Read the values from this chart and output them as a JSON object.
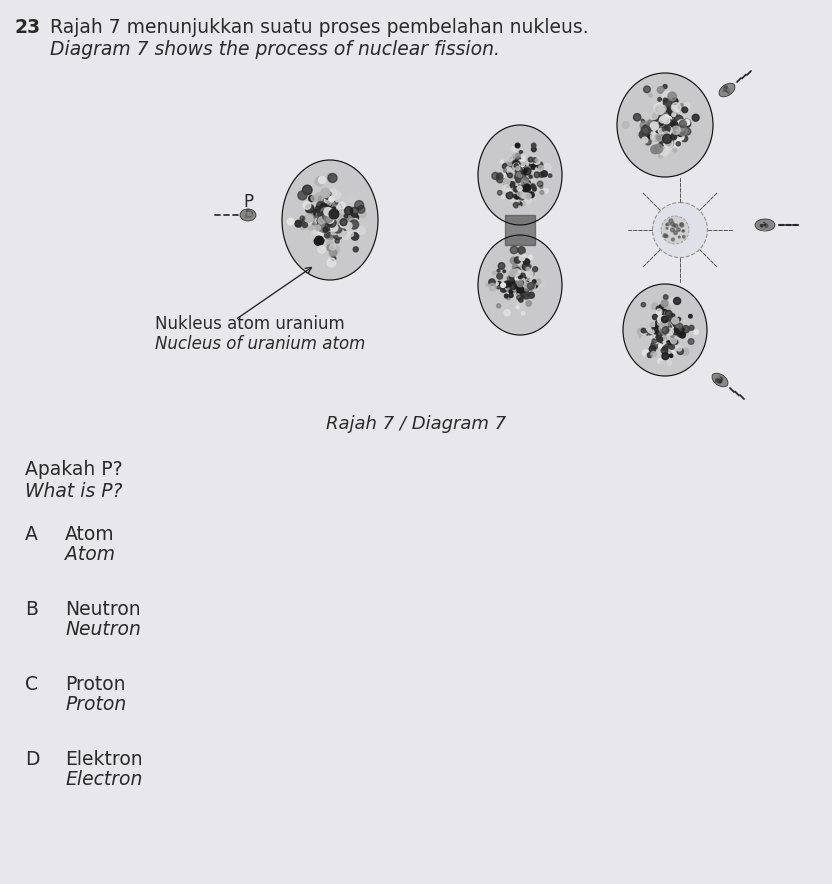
{
  "background_color": "#e8e8ec",
  "question_number": "23",
  "title_line1": "Rajah 7 menunjukkan suatu proses pembelahan nukleus.",
  "title_line2": "Diagram 7 shows the process of nuclear fission.",
  "title_fontsize": 13.5,
  "diagram_label": "Rajah 7 / Diagram 7",
  "nucleus_label_line1": "Nukleus atom uranium",
  "nucleus_label_line2": "Nucleus of uranium atom",
  "question_text_line1": "Apakah P?",
  "question_text_line2": "What is P?",
  "options": [
    {
      "letter": "A",
      "text_line1": "Atom",
      "text_line2": "Atom"
    },
    {
      "letter": "B",
      "text_line1": "Neutron",
      "text_line2": "Neutron"
    },
    {
      "letter": "C",
      "text_line1": "Proton",
      "text_line2": "Proton"
    },
    {
      "letter": "D",
      "text_line1": "Elektron",
      "text_line2": "Electron"
    }
  ],
  "text_color": "#2a2a2a",
  "label_P": "P"
}
